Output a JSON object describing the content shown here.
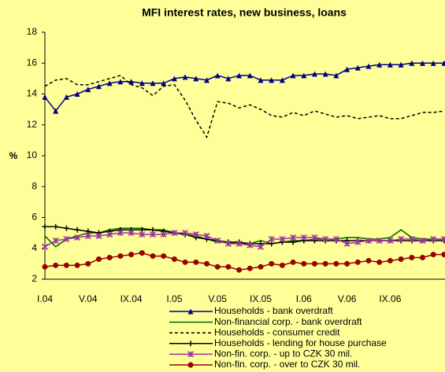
{
  "chart_data": {
    "type": "line",
    "title": "MFI interest rates, new business, loans",
    "y_label": "%",
    "categories": [
      "I.04",
      null,
      null,
      null,
      "V.04",
      null,
      null,
      null,
      "IX.04",
      null,
      null,
      null,
      "I.05",
      null,
      null,
      null,
      "V.05",
      null,
      null,
      null,
      "IX.05",
      null,
      null,
      null,
      "I.06",
      null,
      null,
      null,
      "V.06",
      null,
      null,
      null,
      "IX.06",
      null,
      null,
      null,
      null,
      null
    ],
    "ylim": [
      2,
      18
    ],
    "yticks": [
      2,
      4,
      6,
      8,
      10,
      12,
      14,
      16,
      18
    ],
    "grid": false,
    "legend": "bottom",
    "series": [
      {
        "name": "Households - bank overdraft",
        "color": "#000080",
        "marker": "triangle",
        "dash": false,
        "values": [
          13.8,
          12.9,
          13.8,
          14.0,
          14.3,
          14.5,
          14.7,
          14.8,
          14.8,
          14.7,
          14.7,
          14.7,
          15.0,
          15.1,
          15.0,
          14.9,
          15.2,
          15.0,
          15.2,
          15.2,
          14.9,
          14.9,
          14.9,
          15.2,
          15.2,
          15.3,
          15.3,
          15.2,
          15.6,
          15.7,
          15.8,
          15.9,
          15.9,
          15.9,
          16.0,
          16.0,
          16.0,
          16.0
        ]
      },
      {
        "name": "Non-financial corp. - bank overdraft",
        "color": "#006400",
        "marker": "none",
        "dash": false,
        "values": [
          4.8,
          4.1,
          4.6,
          4.8,
          5.0,
          5.0,
          5.2,
          5.3,
          5.3,
          5.3,
          5.2,
          5.2,
          5.0,
          4.9,
          4.8,
          4.6,
          4.4,
          4.4,
          4.3,
          4.3,
          4.5,
          4.3,
          4.4,
          4.5,
          4.5,
          4.6,
          4.6,
          4.6,
          4.7,
          4.7,
          4.6,
          4.6,
          4.7,
          5.2,
          4.7,
          4.6,
          4.6,
          4.6
        ]
      },
      {
        "name": "Households - consumer credit",
        "color": "#000000",
        "marker": "none",
        "dash": true,
        "values": [
          14.5,
          14.9,
          15.0,
          14.6,
          14.6,
          14.8,
          15.0,
          15.2,
          14.6,
          14.4,
          13.9,
          14.5,
          14.6,
          13.6,
          12.3,
          11.2,
          13.5,
          13.4,
          13.1,
          13.3,
          13.0,
          12.6,
          12.5,
          12.8,
          12.6,
          12.9,
          12.7,
          12.5,
          12.6,
          12.4,
          12.5,
          12.6,
          12.4,
          12.4,
          12.6,
          12.8,
          12.8,
          12.9
        ]
      },
      {
        "name": "Households - lending for house purchase",
        "color": "#000000",
        "marker": "plus",
        "dash": false,
        "values": [
          5.4,
          5.4,
          5.3,
          5.2,
          5.1,
          5.0,
          5.1,
          5.2,
          5.2,
          5.2,
          5.2,
          5.1,
          5.0,
          4.9,
          4.7,
          4.6,
          4.5,
          4.4,
          4.4,
          4.3,
          4.3,
          4.3,
          4.4,
          4.4,
          4.5,
          4.5,
          4.5,
          4.5,
          4.5,
          4.5,
          4.5,
          4.5,
          4.5,
          4.5,
          4.5,
          4.5,
          4.5,
          4.5
        ]
      },
      {
        "name": "Non-fin. corp. - up to CZK 30 mil.",
        "color": "#993399",
        "marker": "cross",
        "dash": false,
        "values": [
          4.1,
          4.5,
          4.6,
          4.7,
          4.8,
          4.8,
          4.9,
          5.0,
          5.0,
          4.9,
          4.9,
          4.9,
          5.0,
          5.0,
          4.9,
          4.8,
          4.5,
          4.3,
          4.3,
          4.2,
          4.1,
          4.6,
          4.6,
          4.7,
          4.7,
          4.7,
          4.6,
          4.6,
          4.3,
          4.4,
          4.5,
          4.5,
          4.5,
          4.6,
          4.6,
          4.5,
          4.6,
          4.6
        ]
      },
      {
        "name": "Non-fin. corp. - over to CZK 30 mil.",
        "color": "#990000",
        "marker": "circle",
        "dash": false,
        "values": [
          2.8,
          2.9,
          2.9,
          2.9,
          3.0,
          3.3,
          3.4,
          3.5,
          3.6,
          3.7,
          3.5,
          3.5,
          3.3,
          3.1,
          3.1,
          3.0,
          2.8,
          2.8,
          2.6,
          2.7,
          2.8,
          3.0,
          2.9,
          3.1,
          3.0,
          3.0,
          3.0,
          3.0,
          3.0,
          3.1,
          3.2,
          3.1,
          3.2,
          3.3,
          3.4,
          3.4,
          3.6,
          3.6
        ]
      }
    ]
  }
}
